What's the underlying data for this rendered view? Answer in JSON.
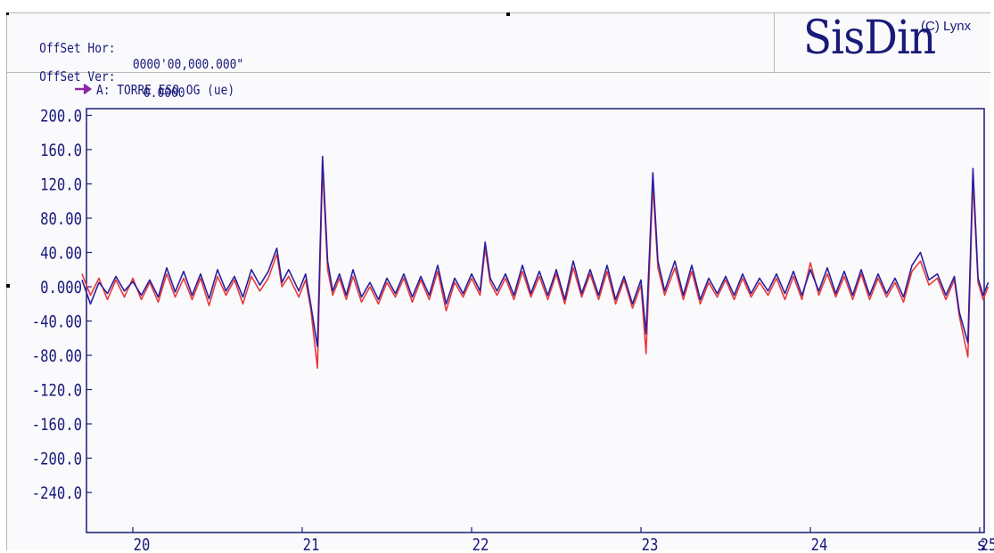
{
  "header": {
    "offset_hor_label": "OffSet Hor:",
    "offset_hor_value": "0000'00,000.000\"",
    "offset_ver_label": "OffSet Ver:",
    "offset_ver_value": "0.0000",
    "logo": "SisDin",
    "logo_copyright": "(C) Lynx"
  },
  "colors": {
    "frame_text": "#1a1a7a",
    "series_a": "#2a1fa0",
    "series_b": "#e83a3a",
    "legend_arrow": "#8a2aa8",
    "legend_text": "#e83a3a"
  },
  "chart_data": {
    "type": "line",
    "legend": {
      "marker": "arrow-right-icon",
      "label": "A: TORRE ESQ OG (ue)",
      "placement": "top-left"
    },
    "xlabel": "s",
    "x_ticks": [
      20,
      21,
      22,
      23,
      24,
      25
    ],
    "x_tick_labels": [
      "20",
      "21",
      "22",
      "23",
      "24",
      "25"
    ],
    "xlim": [
      19.7,
      25.05
    ],
    "y_ticks": [
      200,
      160,
      120,
      80,
      40,
      0,
      -40,
      -80,
      -120,
      -160,
      -200,
      -240
    ],
    "y_tick_labels": [
      "200.0",
      "160.0",
      "120.0",
      "80.00",
      "40.00",
      "0.000",
      "-40.00",
      "-80.00",
      "-120.0",
      "-160.0",
      "-200.0",
      "-240.0"
    ],
    "ylim": [
      -270,
      200
    ],
    "grid": false,
    "series": [
      {
        "color": "#2a1fa0",
        "points": [
          [
            19.7,
            8
          ],
          [
            19.75,
            -20
          ],
          [
            19.8,
            5
          ],
          [
            19.85,
            -8
          ],
          [
            19.9,
            12
          ],
          [
            19.95,
            -5
          ],
          [
            20.0,
            6
          ],
          [
            20.05,
            -10
          ],
          [
            20.1,
            8
          ],
          [
            20.15,
            -12
          ],
          [
            20.2,
            22
          ],
          [
            20.25,
            -6
          ],
          [
            20.3,
            18
          ],
          [
            20.35,
            -10
          ],
          [
            20.4,
            15
          ],
          [
            20.45,
            -14
          ],
          [
            20.5,
            20
          ],
          [
            20.55,
            -5
          ],
          [
            20.6,
            12
          ],
          [
            20.65,
            -12
          ],
          [
            20.7,
            20
          ],
          [
            20.75,
            2
          ],
          [
            20.8,
            18
          ],
          [
            20.85,
            45
          ],
          [
            20.88,
            5
          ],
          [
            20.92,
            20
          ],
          [
            20.98,
            -5
          ],
          [
            21.02,
            15
          ],
          [
            21.05,
            -20
          ],
          [
            21.09,
            -70
          ],
          [
            21.12,
            152
          ],
          [
            21.15,
            30
          ],
          [
            21.18,
            -5
          ],
          [
            21.22,
            15
          ],
          [
            21.26,
            -10
          ],
          [
            21.3,
            20
          ],
          [
            21.35,
            -12
          ],
          [
            21.4,
            5
          ],
          [
            21.45,
            -15
          ],
          [
            21.5,
            10
          ],
          [
            21.55,
            -8
          ],
          [
            21.6,
            15
          ],
          [
            21.65,
            -12
          ],
          [
            21.7,
            12
          ],
          [
            21.75,
            -10
          ],
          [
            21.8,
            25
          ],
          [
            21.85,
            -20
          ],
          [
            21.9,
            10
          ],
          [
            21.95,
            -8
          ],
          [
            22.0,
            15
          ],
          [
            22.05,
            -5
          ],
          [
            22.08,
            52
          ],
          [
            22.11,
            10
          ],
          [
            22.15,
            -5
          ],
          [
            22.2,
            15
          ],
          [
            22.25,
            -10
          ],
          [
            22.3,
            25
          ],
          [
            22.35,
            -8
          ],
          [
            22.4,
            18
          ],
          [
            22.45,
            -10
          ],
          [
            22.5,
            20
          ],
          [
            22.55,
            -15
          ],
          [
            22.6,
            30
          ],
          [
            22.65,
            -8
          ],
          [
            22.7,
            20
          ],
          [
            22.75,
            -10
          ],
          [
            22.8,
            25
          ],
          [
            22.85,
            -15
          ],
          [
            22.9,
            12
          ],
          [
            22.95,
            -20
          ],
          [
            23.0,
            8
          ],
          [
            23.03,
            -55
          ],
          [
            23.07,
            133
          ],
          [
            23.1,
            30
          ],
          [
            23.14,
            -5
          ],
          [
            23.2,
            30
          ],
          [
            23.25,
            -10
          ],
          [
            23.3,
            25
          ],
          [
            23.35,
            -15
          ],
          [
            23.4,
            10
          ],
          [
            23.45,
            -8
          ],
          [
            23.5,
            12
          ],
          [
            23.55,
            -10
          ],
          [
            23.6,
            15
          ],
          [
            23.65,
            -8
          ],
          [
            23.7,
            10
          ],
          [
            23.75,
            -5
          ],
          [
            23.8,
            15
          ],
          [
            23.85,
            -8
          ],
          [
            23.9,
            18
          ],
          [
            23.95,
            -10
          ],
          [
            24.0,
            20
          ],
          [
            24.05,
            -5
          ],
          [
            24.1,
            22
          ],
          [
            24.15,
            -8
          ],
          [
            24.2,
            18
          ],
          [
            24.25,
            -10
          ],
          [
            24.3,
            20
          ],
          [
            24.35,
            -10
          ],
          [
            24.4,
            15
          ],
          [
            24.45,
            -8
          ],
          [
            24.5,
            10
          ],
          [
            24.55,
            -12
          ],
          [
            24.6,
            25
          ],
          [
            24.65,
            40
          ],
          [
            24.7,
            8
          ],
          [
            24.75,
            15
          ],
          [
            24.8,
            -10
          ],
          [
            24.85,
            12
          ],
          [
            24.88,
            -30
          ],
          [
            24.93,
            -65
          ],
          [
            24.96,
            138
          ],
          [
            24.99,
            10
          ],
          [
            25.02,
            -10
          ],
          [
            25.05,
            5
          ]
        ]
      },
      {
        "color": "#e83a3a",
        "points": [
          [
            19.7,
            15
          ],
          [
            19.75,
            -10
          ],
          [
            19.8,
            10
          ],
          [
            19.85,
            -15
          ],
          [
            19.9,
            8
          ],
          [
            19.95,
            -12
          ],
          [
            20.0,
            10
          ],
          [
            20.05,
            -15
          ],
          [
            20.1,
            5
          ],
          [
            20.15,
            -18
          ],
          [
            20.2,
            15
          ],
          [
            20.25,
            -12
          ],
          [
            20.3,
            10
          ],
          [
            20.35,
            -15
          ],
          [
            20.4,
            10
          ],
          [
            20.45,
            -22
          ],
          [
            20.5,
            12
          ],
          [
            20.55,
            -10
          ],
          [
            20.6,
            8
          ],
          [
            20.65,
            -20
          ],
          [
            20.7,
            12
          ],
          [
            20.75,
            -5
          ],
          [
            20.8,
            10
          ],
          [
            20.85,
            38
          ],
          [
            20.88,
            0
          ],
          [
            20.92,
            12
          ],
          [
            20.98,
            -12
          ],
          [
            21.02,
            8
          ],
          [
            21.05,
            -25
          ],
          [
            21.09,
            -95
          ],
          [
            21.12,
            140
          ],
          [
            21.15,
            20
          ],
          [
            21.18,
            -10
          ],
          [
            21.22,
            10
          ],
          [
            21.26,
            -15
          ],
          [
            21.3,
            12
          ],
          [
            21.35,
            -18
          ],
          [
            21.4,
            0
          ],
          [
            21.45,
            -20
          ],
          [
            21.5,
            5
          ],
          [
            21.55,
            -12
          ],
          [
            21.6,
            10
          ],
          [
            21.65,
            -18
          ],
          [
            21.7,
            8
          ],
          [
            21.75,
            -15
          ],
          [
            21.8,
            18
          ],
          [
            21.85,
            -28
          ],
          [
            21.9,
            5
          ],
          [
            21.95,
            -12
          ],
          [
            22.0,
            10
          ],
          [
            22.05,
            -10
          ],
          [
            22.08,
            45
          ],
          [
            22.11,
            5
          ],
          [
            22.15,
            -10
          ],
          [
            22.2,
            10
          ],
          [
            22.25,
            -15
          ],
          [
            22.3,
            18
          ],
          [
            22.35,
            -12
          ],
          [
            22.4,
            12
          ],
          [
            22.45,
            -15
          ],
          [
            22.5,
            15
          ],
          [
            22.55,
            -20
          ],
          [
            22.6,
            22
          ],
          [
            22.65,
            -12
          ],
          [
            22.7,
            15
          ],
          [
            22.75,
            -15
          ],
          [
            22.8,
            18
          ],
          [
            22.85,
            -20
          ],
          [
            22.9,
            8
          ],
          [
            22.95,
            -25
          ],
          [
            23.0,
            2
          ],
          [
            23.03,
            -78
          ],
          [
            23.07,
            120
          ],
          [
            23.1,
            22
          ],
          [
            23.14,
            -10
          ],
          [
            23.2,
            22
          ],
          [
            23.25,
            -15
          ],
          [
            23.3,
            18
          ],
          [
            23.35,
            -20
          ],
          [
            23.4,
            5
          ],
          [
            23.45,
            -12
          ],
          [
            23.5,
            8
          ],
          [
            23.55,
            -15
          ],
          [
            23.6,
            10
          ],
          [
            23.65,
            -12
          ],
          [
            23.7,
            5
          ],
          [
            23.75,
            -10
          ],
          [
            23.8,
            10
          ],
          [
            23.85,
            -15
          ],
          [
            23.9,
            12
          ],
          [
            23.95,
            -15
          ],
          [
            24.0,
            28
          ],
          [
            24.05,
            -10
          ],
          [
            24.1,
            15
          ],
          [
            24.15,
            -12
          ],
          [
            24.2,
            12
          ],
          [
            24.25,
            -15
          ],
          [
            24.3,
            15
          ],
          [
            24.35,
            -15
          ],
          [
            24.4,
            10
          ],
          [
            24.45,
            -12
          ],
          [
            24.5,
            5
          ],
          [
            24.55,
            -18
          ],
          [
            24.6,
            18
          ],
          [
            24.65,
            30
          ],
          [
            24.7,
            2
          ],
          [
            24.75,
            10
          ],
          [
            24.8,
            -15
          ],
          [
            24.85,
            8
          ],
          [
            24.88,
            -35
          ],
          [
            24.93,
            -82
          ],
          [
            24.96,
            125
          ],
          [
            24.99,
            5
          ],
          [
            25.02,
            -15
          ],
          [
            25.05,
            0
          ]
        ]
      }
    ]
  }
}
